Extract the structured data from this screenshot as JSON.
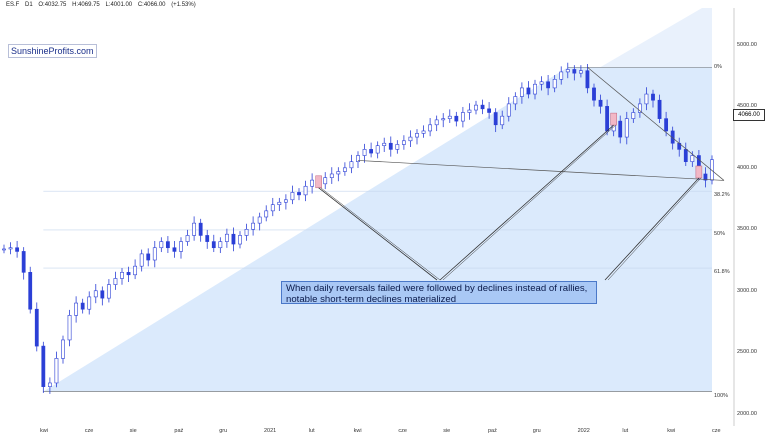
{
  "header": {
    "symbol": "ES.F",
    "timeframe": "D1",
    "open": "O:4032.75",
    "high": "H:4069.75",
    "low": "L:4001.00",
    "close": "C:4066.00",
    "change": "(+1.53%)"
  },
  "brand": "SunshineProfits.com",
  "annotation": "When daily reversals failed were followed by declines instead of rallies, notable short-term declines materialized",
  "last_price_tag": "4066.00",
  "colors": {
    "candles": "#2b3fd6",
    "fib_fill": "#dbeafc",
    "diag_fill": "#e9f1fc",
    "trendline": "#555555",
    "reversal_box": "#f2b8c6",
    "annotation_bg": "#a9c8f5"
  },
  "chart_data": {
    "type": "candlestick",
    "title": "",
    "y_ticks": [
      "5000.00",
      "4500.00",
      "4000.00",
      "3500.00",
      "3000.00",
      "2500.00",
      "2000.00"
    ],
    "y_tick_values": [
      5000,
      4500,
      4000,
      3500,
      3000,
      2500,
      2000
    ],
    "ylim": [
      1900,
      5300
    ],
    "x_tick_labels": [
      "kwi",
      "cze",
      "sie",
      "paź",
      "gru",
      "2021",
      "lut",
      "kwi",
      "cze",
      "sie",
      "paź",
      "gru",
      "2022",
      "lut",
      "kwi",
      "cze"
    ],
    "fibonacci_levels": [
      {
        "label": "0%",
        "value": 4818
      },
      {
        "label": "38.2%",
        "value": 3810
      },
      {
        "label": "50%",
        "value": 3495
      },
      {
        "label": "61.8%",
        "value": 3185
      },
      {
        "label": "100%",
        "value": 2180
      }
    ],
    "series": [
      {
        "name": "",
        "values": [
          3340,
          3350,
          3320,
          3150,
          2850,
          2550,
          2220,
          2250,
          2450,
          2600,
          2800,
          2900,
          2850,
          2950,
          3000,
          2940,
          3050,
          3100,
          3150,
          3130,
          3200,
          3300,
          3250,
          3350,
          3400,
          3350,
          3320,
          3400,
          3450,
          3550,
          3450,
          3400,
          3350,
          3400,
          3460,
          3380,
          3450,
          3500,
          3550,
          3600,
          3650,
          3700,
          3720,
          3740,
          3800,
          3780,
          3850,
          3900,
          3870,
          3920,
          3950,
          3970,
          4000,
          4050,
          4100,
          4150,
          4120,
          4180,
          4200,
          4150,
          4190,
          4220,
          4250,
          4280,
          4300,
          4350,
          4390,
          4400,
          4420,
          4380,
          4450,
          4470,
          4510,
          4480,
          4450,
          4350,
          4420,
          4520,
          4580,
          4650,
          4600,
          4680,
          4700,
          4650,
          4720,
          4780,
          4800,
          4770,
          4790,
          4650,
          4550,
          4500,
          4300,
          4380,
          4250,
          4400,
          4450,
          4520,
          4600,
          4550,
          4400,
          4300,
          4200,
          4150,
          4050,
          4100,
          3950,
          3900,
          4066
        ]
      }
    ],
    "trendlines": [
      {
        "from": [
          54,
          4060
        ],
        "to": [
          108,
          3930
        ]
      },
      {
        "from": [
          89,
          4818
        ],
        "to": [
          108,
          3930
        ]
      }
    ],
    "reversal_markers_index": [
      48,
      93,
      106
    ]
  }
}
